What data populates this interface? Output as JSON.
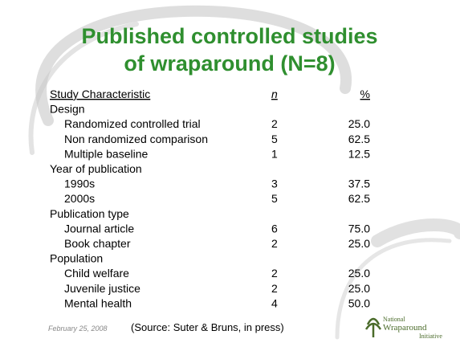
{
  "slide": {
    "title": [
      "Published controlled studies",
      "of wraparound (N=8)"
    ],
    "table": {
      "header": [
        "Study Characteristic",
        "n",
        "%"
      ],
      "groups": [
        {
          "label": "Design",
          "rows": [
            [
              "Randomized controlled trial",
              "2",
              "25.0"
            ],
            [
              "Non randomized comparison",
              "5",
              "62.5"
            ],
            [
              "Multiple baseline",
              "1",
              "12.5"
            ]
          ]
        },
        {
          "label": "Year of publication",
          "rows": [
            [
              "1990s",
              "3",
              "37.5"
            ],
            [
              "2000s",
              "5",
              "62.5"
            ]
          ]
        },
        {
          "label": "Publication type",
          "rows": [
            [
              "Journal article",
              "6",
              "75.0"
            ],
            [
              "Book chapter",
              "2",
              "25.0"
            ]
          ]
        },
        {
          "label": "Population",
          "rows": [
            [
              "Child welfare",
              "2",
              "25.0"
            ],
            [
              "Juvenile justice",
              "2",
              "25.0"
            ],
            [
              "Mental health",
              "4",
              "50.0"
            ]
          ]
        }
      ]
    },
    "footer": {
      "date": "February 25, 2008",
      "source": "(Source: Suter & Bruns, in press)",
      "logo": [
        "National",
        "Wraparound",
        "Initiative"
      ]
    }
  }
}
